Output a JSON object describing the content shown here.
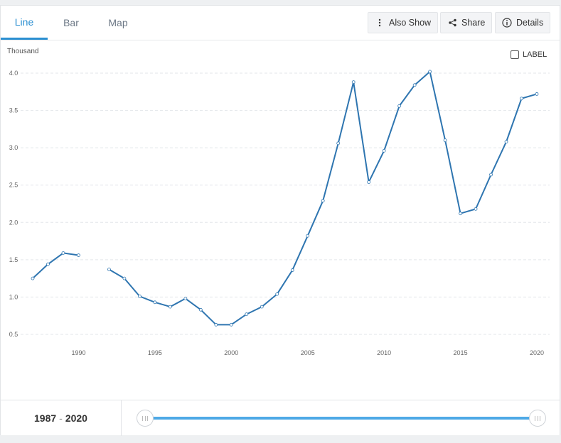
{
  "tabs": [
    {
      "label": "Line",
      "active": true
    },
    {
      "label": "Bar",
      "active": false
    },
    {
      "label": "Map",
      "active": false
    }
  ],
  "toolbar": {
    "also_show": "Also Show",
    "share": "Share",
    "details": "Details"
  },
  "label_toggle": {
    "text": "LABEL",
    "checked": false
  },
  "chart_data": {
    "type": "line",
    "unit_label": "Thousand",
    "series": [
      {
        "color": "#2e75b0",
        "points": [
          [
            1987,
            1.25
          ],
          [
            1988,
            1.44
          ],
          [
            1989,
            1.59
          ],
          [
            1990,
            1.56
          ],
          [
            1991,
            null
          ],
          [
            1992,
            1.37
          ],
          [
            1993,
            1.25
          ],
          [
            1994,
            1.01
          ],
          [
            1995,
            0.93
          ],
          [
            1996,
            0.87
          ],
          [
            1997,
            0.98
          ],
          [
            1998,
            0.83
          ],
          [
            1999,
            0.63
          ],
          [
            2000,
            0.63
          ],
          [
            2001,
            0.77
          ],
          [
            2002,
            0.87
          ],
          [
            2003,
            1.04
          ],
          [
            2004,
            1.36
          ],
          [
            2005,
            1.82
          ],
          [
            2006,
            2.29
          ],
          [
            2007,
            3.06
          ],
          [
            2008,
            3.88
          ],
          [
            2009,
            2.54
          ],
          [
            2010,
            2.96
          ],
          [
            2011,
            3.56
          ],
          [
            2012,
            3.84
          ],
          [
            2013,
            4.02
          ],
          [
            2014,
            3.1
          ],
          [
            2015,
            2.12
          ],
          [
            2016,
            2.18
          ],
          [
            2017,
            2.64
          ],
          [
            2018,
            3.08
          ],
          [
            2019,
            3.66
          ],
          [
            2020,
            3.72
          ]
        ]
      }
    ],
    "y_ticks": [
      "0.5",
      "1.0",
      "1.5",
      "2.0",
      "2.5",
      "3.0",
      "3.5",
      "4.0"
    ],
    "y_tick_values": [
      0.5,
      1.0,
      1.5,
      2.0,
      2.5,
      3.0,
      3.5,
      4.0
    ],
    "x_ticks": [
      "1990",
      "1995",
      "2000",
      "2005",
      "2010",
      "2015",
      "2020"
    ],
    "x_tick_values": [
      1990,
      1995,
      2000,
      2005,
      2010,
      2015,
      2020
    ],
    "xlim": [
      1987,
      2020
    ],
    "ylim": [
      0.5,
      4.0
    ],
    "grid": true
  },
  "range": {
    "start": "1987",
    "end": "2020",
    "separator": "-"
  }
}
